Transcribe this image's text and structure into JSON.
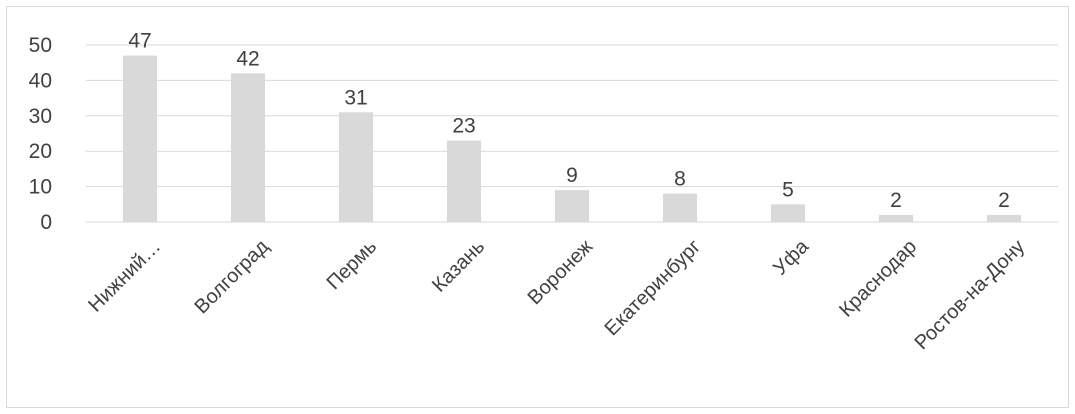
{
  "chart_data": {
    "type": "bar",
    "title": "",
    "xlabel": "",
    "ylabel": "",
    "categories": [
      "Нижний…",
      "Волгоград",
      "Пермь",
      "Казань",
      "Воронеж",
      "Екатеринбург",
      "Уфа",
      "Краснодар",
      "Ростов-на-Дону"
    ],
    "values": [
      47,
      42,
      31,
      23,
      9,
      8,
      5,
      2,
      2
    ],
    "data_labels": [
      "47",
      "42",
      "31",
      "23",
      "9",
      "8",
      "5",
      "2",
      "2"
    ],
    "ylim": [
      0,
      50
    ],
    "yticks": [
      0,
      10,
      20,
      30,
      40,
      50
    ],
    "ytick_labels": [
      "0",
      "10",
      "20",
      "30",
      "40",
      "50"
    ],
    "grid": true,
    "legend": "none",
    "colors": {
      "bar": "#d9d9d9",
      "grid": "#d9d9d9",
      "axis": "#d9d9d9",
      "text": "#404040",
      "frame": "#d9d9d9"
    }
  }
}
